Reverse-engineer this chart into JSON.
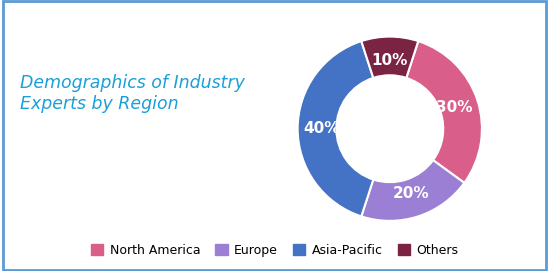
{
  "title": "Demographics of Industry\nExperts by Region",
  "title_color": "#1B9FD8",
  "title_fontsize": 12.5,
  "labels": [
    "North America",
    "Europe",
    "Asia-Pacific",
    "Others"
  ],
  "values": [
    30,
    20,
    40,
    10
  ],
  "colors": [
    "#D95F8A",
    "#9B7FD4",
    "#4472C4",
    "#7B2342"
  ],
  "pct_labels": [
    "30%",
    "20%",
    "40%",
    "10%"
  ],
  "pct_color": "#FFFFFF",
  "pct_fontsize": 11,
  "legend_fontsize": 9,
  "background_color": "#FFFFFF",
  "border_color": "#5B9BD5",
  "startangle": 72
}
